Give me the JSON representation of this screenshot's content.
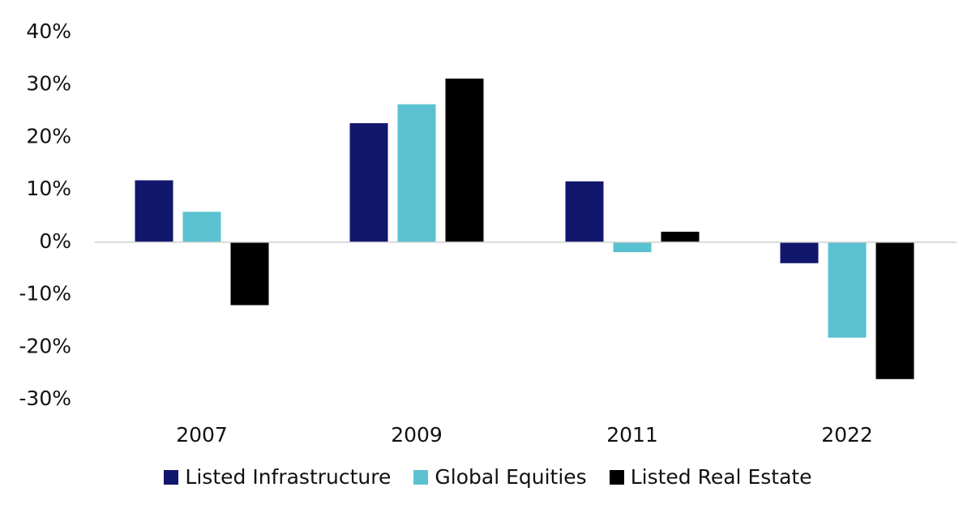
{
  "chart_data": {
    "type": "bar",
    "title": "",
    "xlabel": "",
    "ylabel": "",
    "categories": [
      "2007",
      "2009",
      "2011",
      "2022"
    ],
    "series": [
      {
        "name": "Listed Infrastructure",
        "color": "#12176e",
        "values": [
          11.8,
          22.7,
          11.6,
          -4.0
        ]
      },
      {
        "name": "Global Equities",
        "color": "#5ac1d0",
        "values": [
          5.8,
          26.3,
          -1.9,
          -18.2
        ]
      },
      {
        "name": "Listed Real Estate",
        "color": "#000000",
        "values": [
          -12.0,
          31.2,
          2.0,
          -26.1
        ]
      }
    ],
    "ylim": [
      -30,
      40
    ],
    "yticks": [
      40,
      30,
      20,
      10,
      0,
      -10,
      -20,
      -30
    ],
    "ytick_labels": [
      "40%",
      "30%",
      "20%",
      "10%",
      "0%",
      "-10%",
      "-20%",
      "-30%"
    ],
    "grid": false,
    "legend_position": "bottom"
  }
}
